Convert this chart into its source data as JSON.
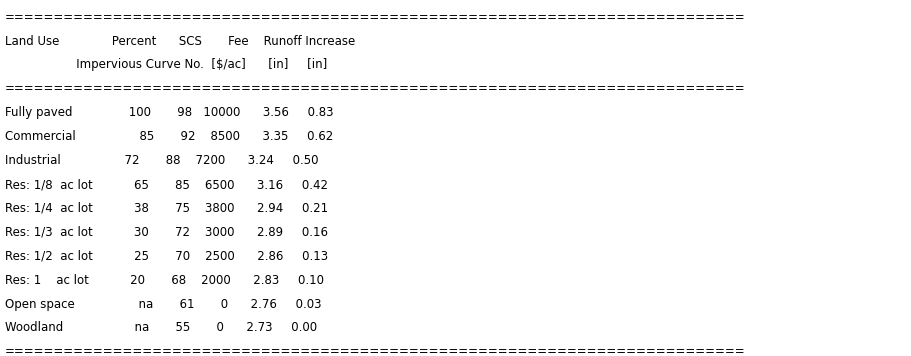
{
  "font_family": "Courier New",
  "font_size": 8.5,
  "bg_color": "#ffffff",
  "text_color": "#000000",
  "table_text": [
    "===========================================================================",
    "Land Use              Percent      SCS       Fee    Runoff Increase",
    "                   Impervious Curve No.  [$/ac]      [in]     [in]",
    "===========================================================================",
    "Fully paved               100       98   10000      3.56     0.83",
    "Commercial                 85       92    8500      3.35     0.62",
    "Industrial                 72       88    7200      3.24     0.50",
    "Res: 1/8  ac lot           65       85    6500      3.16     0.42",
    "Res: 1/4  ac lot           38       75    3800      2.94     0.21",
    "Res: 1/3  ac lot           30       72    3000      2.89     0.16",
    "Res: 1/2  ac lot           25       70    2500      2.86     0.13",
    "Res: 1    ac lot           20       68    2000      2.83     0.10",
    "Open space                 na       61       0      2.76     0.03",
    "Woodland                   na       55       0      2.73     0.00",
    "==========================================================================="
  ],
  "figwidth": 9.12,
  "figheight": 3.56,
  "dpi": 100
}
